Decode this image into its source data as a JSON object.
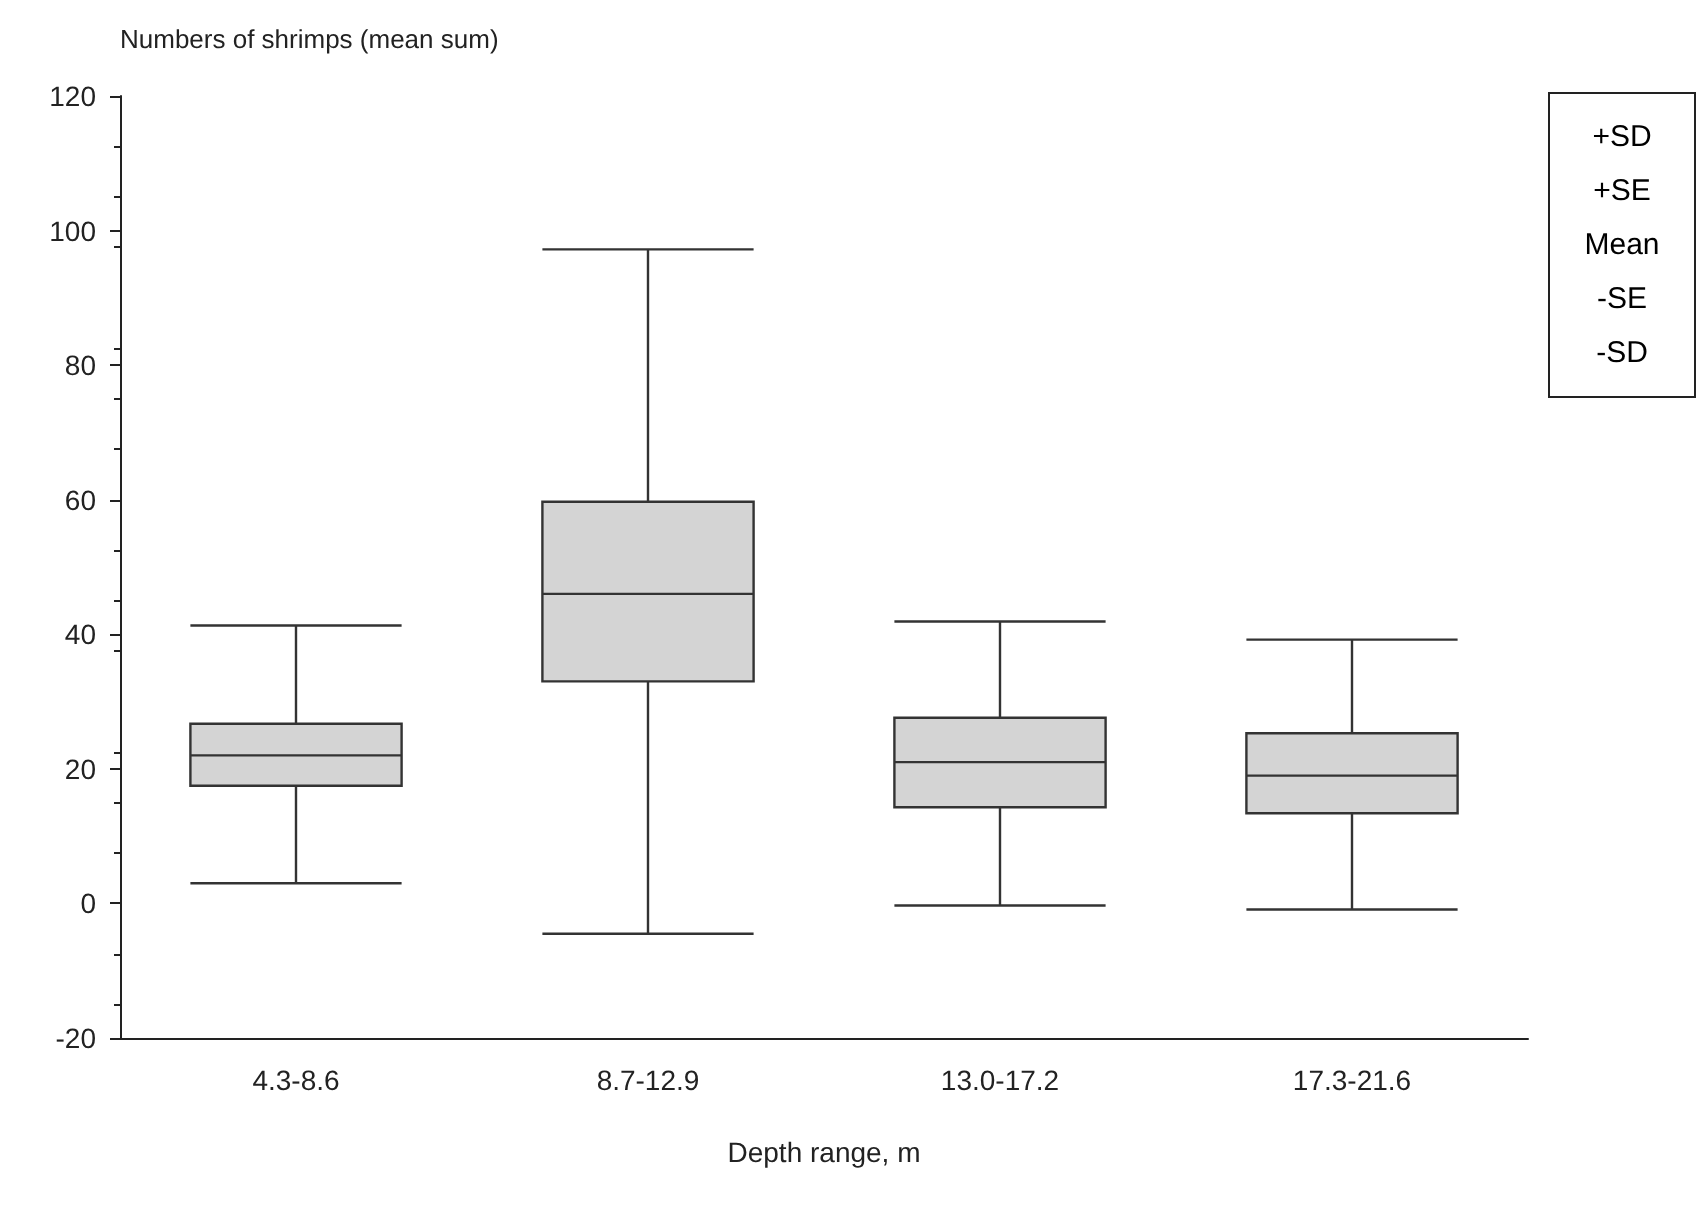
{
  "chart_data": {
    "type": "box",
    "ylabel": "Numbers of shrimps (mean sum)",
    "xlabel": "Depth range, m",
    "categories": [
      "4.3-8.6",
      "8.7-12.9",
      "13.0-17.2",
      "17.3-21.6"
    ],
    "boxes": [
      {
        "low": 3,
        "q1": 17.5,
        "median": 22,
        "q3": 26.7,
        "high": 41.3
      },
      {
        "low": -4.5,
        "q1": 33,
        "median": 46,
        "q3": 59.7,
        "high": 97.2
      },
      {
        "low": -0.3,
        "q1": 14.3,
        "median": 21,
        "q3": 27.6,
        "high": 41.9
      },
      {
        "low": -0.9,
        "q1": 13.4,
        "median": 19,
        "q3": 25.3,
        "high": 39.2
      }
    ],
    "color": "#d4d4d4",
    "ylim": [
      -20,
      120
    ],
    "yticks": [
      -20,
      0,
      20,
      40,
      60,
      80,
      100,
      120
    ],
    "annotations": [
      "+SD",
      "+SE",
      "Mean",
      "-SE",
      "-SD"
    ],
    "grid": false
  }
}
